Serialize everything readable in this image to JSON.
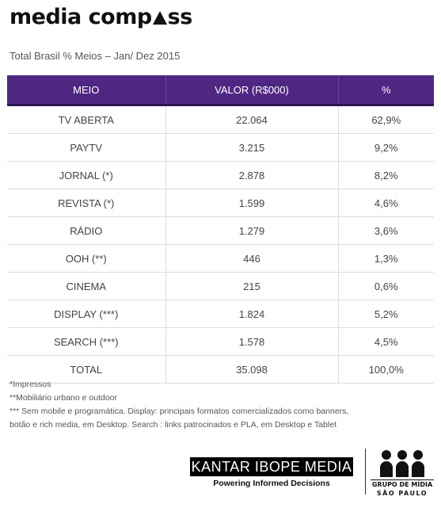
{
  "header": {
    "logo_left": "media comp",
    "logo_right": "ss",
    "subtitle": "Total Brasil % Meios – Jan/ Dez 2015"
  },
  "table": {
    "columns": [
      "MEIO",
      "VALOR (R$000)",
      "%"
    ],
    "rows": [
      {
        "meio": "TV ABERTA",
        "valor": "22.064",
        "pct": "62,9%"
      },
      {
        "meio": "PAYTV",
        "valor": "3.215",
        "pct": "9,2%"
      },
      {
        "meio": "JORNAL (*)",
        "valor": "2.878",
        "pct": "8,2%"
      },
      {
        "meio": "REVISTA (*)",
        "valor": "1.599",
        "pct": "4,6%"
      },
      {
        "meio": "RÁDIO",
        "valor": "1.279",
        "pct": "3,6%"
      },
      {
        "meio": "OOH (**)",
        "valor": "446",
        "pct": "1,3%"
      },
      {
        "meio": "CINEMA",
        "valor": "215",
        "pct": "0,6%"
      },
      {
        "meio": "DISPLAY (***)",
        "valor": "1.824",
        "pct": "5,2%"
      },
      {
        "meio": "SEARCH (***)",
        "valor": "1.578",
        "pct": "4,5%"
      },
      {
        "meio": "TOTAL",
        "valor": "35.098",
        "pct": "100,0%"
      }
    ]
  },
  "notes": [
    "*Impressos",
    "**Mobiliário urbano e outdoor",
    "*** Sem mobile e programática. Display: principais formatos comercializados como banners,",
    "botão e rich media, em Desktop. Search : links patrocinados e PLA, em Desktop e Tablet"
  ],
  "footer": {
    "kantar_name": "KANTAR IBOPE MEDIA",
    "kantar_tagline": "Powering Informed Decisions",
    "grupo_line1": "GRUPO DE MÍDIA",
    "grupo_line2": "SÃO PAULO"
  },
  "colors": {
    "header_bg": "#4f2782",
    "header_border": "#2c1650"
  }
}
